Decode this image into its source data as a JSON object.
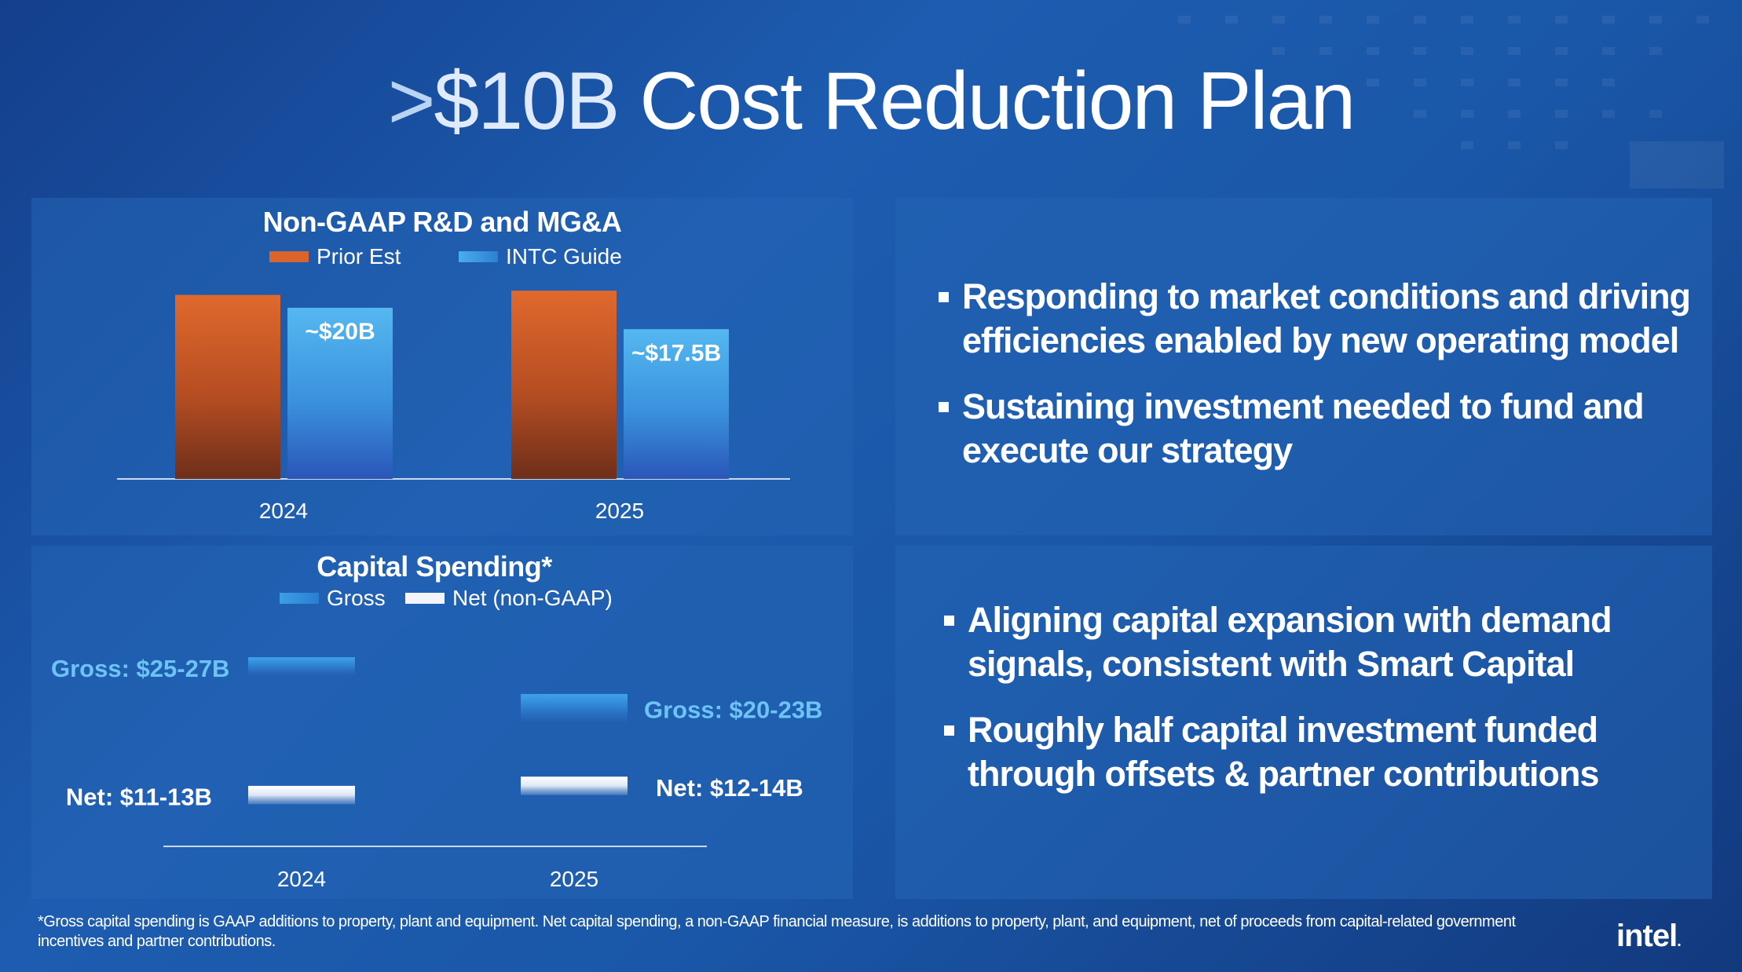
{
  "slide": {
    "title_prefix": ">",
    "title_amount": "$10B",
    "title_rest": " Cost Reduction Plan"
  },
  "colors": {
    "prior_est": "#d9652c",
    "intc_guide": "#4aaeea",
    "gross": "#3d9ee6",
    "net": "#f2f5fa",
    "gross_label": "#6cc4f5"
  },
  "chart_data": [
    {
      "type": "bar",
      "title": "Non-GAAP R&D and MG&A",
      "categories": [
        "2024",
        "2025"
      ],
      "series": [
        {
          "name": "Prior Est",
          "values": [
            21.5,
            22
          ],
          "data_labels": [
            "",
            ""
          ]
        },
        {
          "name": "INTC Guide",
          "values": [
            20,
            17.5
          ],
          "data_labels": [
            "~$20B",
            "~$17.5B"
          ]
        }
      ],
      "legend": "top-center"
    },
    {
      "type": "bar",
      "title": "Capital Spending*",
      "categories": [
        "2024",
        "2025"
      ],
      "series": [
        {
          "name": "Gross",
          "values": [
            [
              25,
              27
            ],
            [
              20,
              23
            ]
          ],
          "data_labels": [
            "Gross: $25-27B",
            "Gross: $20-23B"
          ]
        },
        {
          "name": "Net (non-GAAP)",
          "values": [
            [
              11,
              13
            ],
            [
              12,
              14
            ]
          ],
          "data_labels": [
            "Net: $11-13B",
            "Net: $12-14B"
          ]
        }
      ],
      "legend": "top-center"
    }
  ],
  "bullets_top": [
    "Responding to market conditions and driving efficiencies enabled by new operating model",
    "Sustaining investment needed to fund and execute our strategy"
  ],
  "bullets_bottom": [
    "Aligning capital expansion with demand signals, consistent with Smart Capital",
    "Roughly half capital investment funded through offsets & partner contributions"
  ],
  "footnote": "*Gross capital spending is GAAP additions to property, plant and equipment. Net capital spending, a non-GAAP financial measure, is additions to property, plant, and equipment, net of proceeds from capital-related government incentives and partner contributions.",
  "logo": {
    "text": "intel",
    "dot": "."
  }
}
